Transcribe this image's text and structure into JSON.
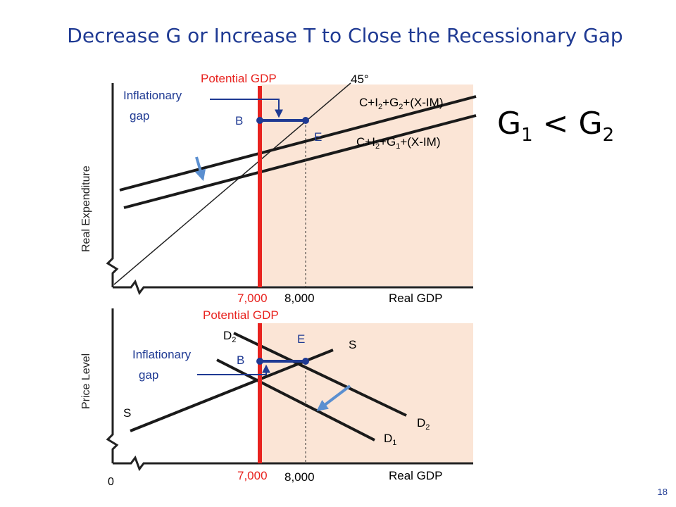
{
  "title": "Decrease G or Increase T to Close the Recessionary Gap",
  "page_number": "18",
  "comparison": {
    "g": "G",
    "sub1": "1",
    "op": " < ",
    "sub2": "2"
  },
  "top_panel": {
    "potential_gdp": "Potential GDP",
    "inflationary_gap": [
      "Inflationary",
      "gap"
    ],
    "angle_label": "45°",
    "curve_upper": {
      "p1": "C+I",
      "s1": "2",
      "p2": "+G",
      "s2": "2",
      "p3": "+(X-IM)"
    },
    "curve_lower": {
      "p1": "C+I",
      "s1": "2",
      "p2": "+G",
      "s2": "1",
      "p3": "+(X-IM)"
    },
    "point_b": "B",
    "point_e": "E",
    "y_axis": "Real Expenditure",
    "x_axis": "Real GDP",
    "tick_potential": "7,000",
    "tick_equilibrium": "8,000"
  },
  "bottom_panel": {
    "potential_gdp": "Potential GDP",
    "inflationary_gap": [
      "Inflationary",
      "gap"
    ],
    "d2_top": {
      "base": "D",
      "sub": "2"
    },
    "d2_right": {
      "base": "D",
      "sub": "2"
    },
    "d1": {
      "base": "D",
      "sub": "1"
    },
    "s_right": "S",
    "s_left": "S",
    "point_e": "E",
    "point_b": "B",
    "y_axis": "Price Level",
    "x_axis": "Real GDP",
    "origin": "0",
    "tick_potential": "7,000",
    "tick_equilibrium": "8,000"
  },
  "colors": {
    "title": "#1f3a93",
    "potential_line": "#e8231f",
    "shade": "#fbe5d6",
    "arrow": "#5b8fd0",
    "gap_bar": "#1f3a93",
    "points": "#1f3a93"
  }
}
